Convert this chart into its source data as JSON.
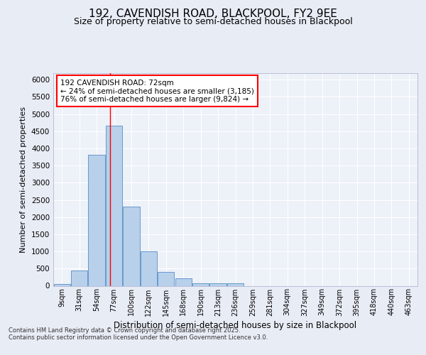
{
  "title_line1": "192, CAVENDISH ROAD, BLACKPOOL, FY2 9EE",
  "title_line2": "Size of property relative to semi-detached houses in Blackpool",
  "xlabel": "Distribution of semi-detached houses by size in Blackpool",
  "ylabel": "Number of semi-detached properties",
  "categories": [
    "9sqm",
    "31sqm",
    "54sqm",
    "77sqm",
    "100sqm",
    "122sqm",
    "145sqm",
    "168sqm",
    "190sqm",
    "213sqm",
    "236sqm",
    "259sqm",
    "281sqm",
    "304sqm",
    "327sqm",
    "349sqm",
    "372sqm",
    "395sqm",
    "418sqm",
    "440sqm",
    "463sqm"
  ],
  "values": [
    50,
    440,
    3820,
    4660,
    2300,
    1000,
    400,
    210,
    75,
    65,
    65,
    0,
    0,
    0,
    0,
    0,
    0,
    0,
    0,
    0,
    0
  ],
  "bar_color": "#b8d0ea",
  "bar_edge_color": "#6699cc",
  "annotation_text_line1": "192 CAVENDISH ROAD: 72sqm",
  "annotation_text_line2": "← 24% of semi-detached houses are smaller (3,185)",
  "annotation_text_line3": "76% of semi-detached houses are larger (9,824) →",
  "ylim": [
    0,
    6200
  ],
  "yticks": [
    0,
    500,
    1000,
    1500,
    2000,
    2500,
    3000,
    3500,
    4000,
    4500,
    5000,
    5500,
    6000
  ],
  "footer_line1": "Contains HM Land Registry data © Crown copyright and database right 2025.",
  "footer_line2": "Contains public sector information licensed under the Open Government Licence v3.0.",
  "bg_color": "#e8ecf5",
  "plot_bg_color": "#edf1f8",
  "grid_color": "#ffffff",
  "title1_fontsize": 11,
  "title2_fontsize": 9
}
